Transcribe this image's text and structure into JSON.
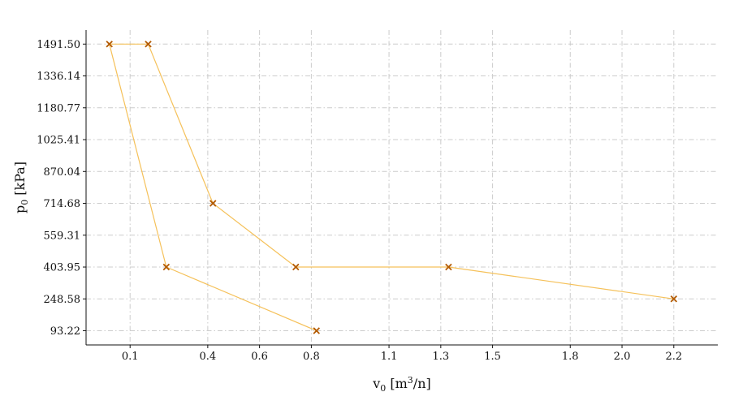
{
  "chart_data": {
    "type": "line",
    "title": "",
    "xlabel": "v",
    "xlabel_sub": "0",
    "xlabel_unit_pre": " [m",
    "xlabel_unit_sup": "3",
    "xlabel_unit_post": "/n]",
    "ylabel": "p",
    "ylabel_sub": "0",
    "ylabel_unit": " [kPa]",
    "xlim": [
      -0.07,
      2.37
    ],
    "ylim": [
      24,
      1560
    ],
    "xticks": [
      0.1,
      0.4,
      0.6,
      0.8,
      1.1,
      1.3,
      1.5,
      1.8,
      2.0,
      2.2
    ],
    "xtick_labels": [
      "0.1",
      "0.4",
      "0.6",
      "0.8",
      "1.1",
      "1.3",
      "1.5",
      "1.8",
      "2.0",
      "2.2"
    ],
    "yticks": [
      93.22,
      248.58,
      403.95,
      559.31,
      714.68,
      870.04,
      1025.41,
      1180.77,
      1336.14,
      1491.5
    ],
    "ytick_labels": [
      "93.22",
      "248.58",
      "403.95",
      "559.31",
      "714.68",
      "870.04",
      "1025.41",
      "1180.77",
      "1336.14",
      "1491.50"
    ],
    "grid": true,
    "line_color": "#f5c15a",
    "marker_color": "#b35a00",
    "marker": "x",
    "series": [
      {
        "x": [
          2.2,
          1.33,
          0.74,
          0.42,
          0.17,
          0.02,
          0.24,
          0.82
        ],
        "y": [
          248.58,
          403.95,
          403.95,
          714.68,
          1491.5,
          1491.5,
          403.95,
          93.22
        ]
      }
    ]
  }
}
